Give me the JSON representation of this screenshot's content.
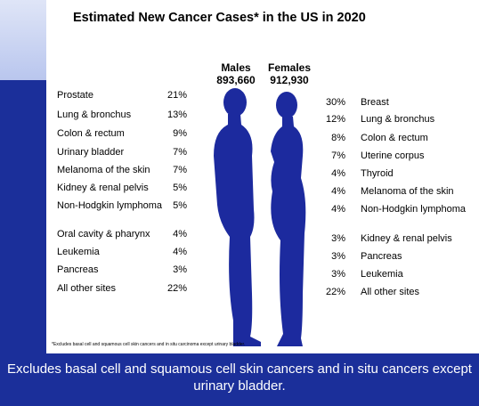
{
  "title": "Estimated New Cancer Cases* in the US in 2020",
  "males": {
    "heading": "Males",
    "total": "893,660",
    "rows": [
      {
        "site": "Prostate",
        "percent": "21%"
      },
      {
        "site": "Lung & bronchus",
        "percent": "13%"
      },
      {
        "site": "Colon & rectum",
        "percent": "9%"
      },
      {
        "site": "Urinary bladder",
        "percent": "7%"
      },
      {
        "site": "Melanoma of the skin",
        "percent": "7%"
      },
      {
        "site": "Kidney & renal pelvis",
        "percent": "5%"
      },
      {
        "site": "Non-Hodgkin lymphoma",
        "percent": "5%"
      },
      {
        "site": "Oral cavity & pharynx",
        "percent": "4%"
      },
      {
        "site": "Leukemia",
        "percent": "4%"
      },
      {
        "site": "Pancreas",
        "percent": "3%"
      },
      {
        "site": "All other sites",
        "percent": "22%"
      }
    ]
  },
  "females": {
    "heading": "Females",
    "total": "912,930",
    "rows": [
      {
        "site": "Breast",
        "percent": "30%"
      },
      {
        "site": "Lung & bronchus",
        "percent": "12%"
      },
      {
        "site": "Colon & rectum",
        "percent": "8%"
      },
      {
        "site": "Uterine corpus",
        "percent": "7%"
      },
      {
        "site": "Thyroid",
        "percent": "4%"
      },
      {
        "site": "Melanoma of the skin",
        "percent": "4%"
      },
      {
        "site": "Non-Hodgkin lymphoma",
        "percent": "4%"
      },
      {
        "site": "Kidney & renal pelvis",
        "percent": "3%"
      },
      {
        "site": "Pancreas",
        "percent": "3%"
      },
      {
        "site": "Leukemia",
        "percent": "3%"
      },
      {
        "site": "All other sites",
        "percent": "22%"
      }
    ]
  },
  "footnote": "*Excludes basal cell and squamous cell skin cancers and in situ carcinoma except urinary bladder.",
  "caption": "Excludes basal cell and squamous cell skin cancers and in situ cancers except urinary bladder."
}
